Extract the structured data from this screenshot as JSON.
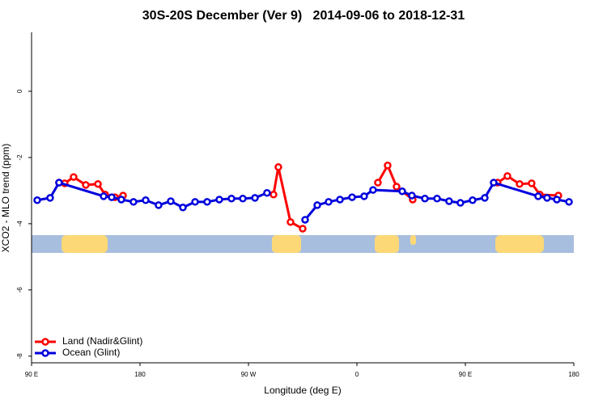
{
  "chart_data": {
    "type": "line",
    "title": "30S-20S December (Ver 9)   2014-09-06 to 2018-12-31",
    "x_label": "Longitude (deg E)",
    "y_label": "XCO2 - MLO trend (ppm)",
    "xlim": [
      90,
      540
    ],
    "xticks": [
      {
        "value": 90,
        "label": "90 E"
      },
      180,
      {
        "value": 270,
        "label": "90 W"
      },
      {
        "value": 360,
        "label": "0"
      },
      {
        "value": 450,
        "label": "90 E"
      },
      {
        "value": 540,
        "label": "180"
      }
    ],
    "ylim": [
      -8.2,
      1.78
    ],
    "yticks": [
      0,
      -2,
      -4,
      -6,
      -8
    ],
    "legend": "bottom-left",
    "series": [
      {
        "name": "Land (Nadir&Glint)",
        "color": "#ff0000",
        "x": [
          112.8,
          117.5,
          124.9,
          135.0,
          145.1,
          151.1,
          159.2,
          165.9,
          null,
          290.8,
          294.8,
          304.9,
          315.0,
          null,
          377.4,
          385.5,
          392.9,
          406.3,
          null,
          476.8,
          484.9,
          495.0,
          505.0,
          511.8,
          527.2
        ],
        "values": [
          -2.76,
          -2.78,
          -2.59,
          -2.83,
          -2.8,
          -3.12,
          -3.2,
          -3.15,
          null,
          -3.12,
          -2.29,
          -3.95,
          -4.15,
          null,
          -2.76,
          -2.24,
          -2.88,
          -3.27,
          null,
          -2.76,
          -2.56,
          -2.8,
          -2.78,
          -3.12,
          -3.15
        ]
      },
      {
        "name": "Ocean (Glint)",
        "color": "#0000dd",
        "x": [
          94.7,
          105.4,
          112.8,
          149.8,
          156.5,
          164.5,
          174.6,
          184.7,
          195.4,
          205.5,
          215.6,
          225.7,
          235.7,
          245.8,
          255.9,
          265.3,
          275.4,
          285.4,
          null,
          317.0,
          327.1,
          336.5,
          345.9,
          356.0,
          366.0,
          373.4,
          397.6,
          405.6,
          416.4,
          426.5,
          436.5,
          445.9,
          456.0,
          466.1,
          473.5,
          510.4,
          517.8,
          525.9,
          536.0
        ],
        "values": [
          -3.29,
          -3.22,
          -2.76,
          -3.17,
          -3.2,
          -3.27,
          -3.34,
          -3.29,
          -3.44,
          -3.32,
          -3.51,
          -3.34,
          -3.34,
          -3.27,
          -3.24,
          -3.24,
          -3.22,
          -3.07,
          null,
          -3.88,
          -3.44,
          -3.34,
          -3.27,
          -3.2,
          -3.17,
          -2.98,
          -3.02,
          -3.15,
          -3.24,
          -3.24,
          -3.32,
          -3.37,
          -3.29,
          -3.22,
          -2.76,
          -3.17,
          -3.22,
          -3.27,
          -3.34
        ]
      }
    ]
  }
}
